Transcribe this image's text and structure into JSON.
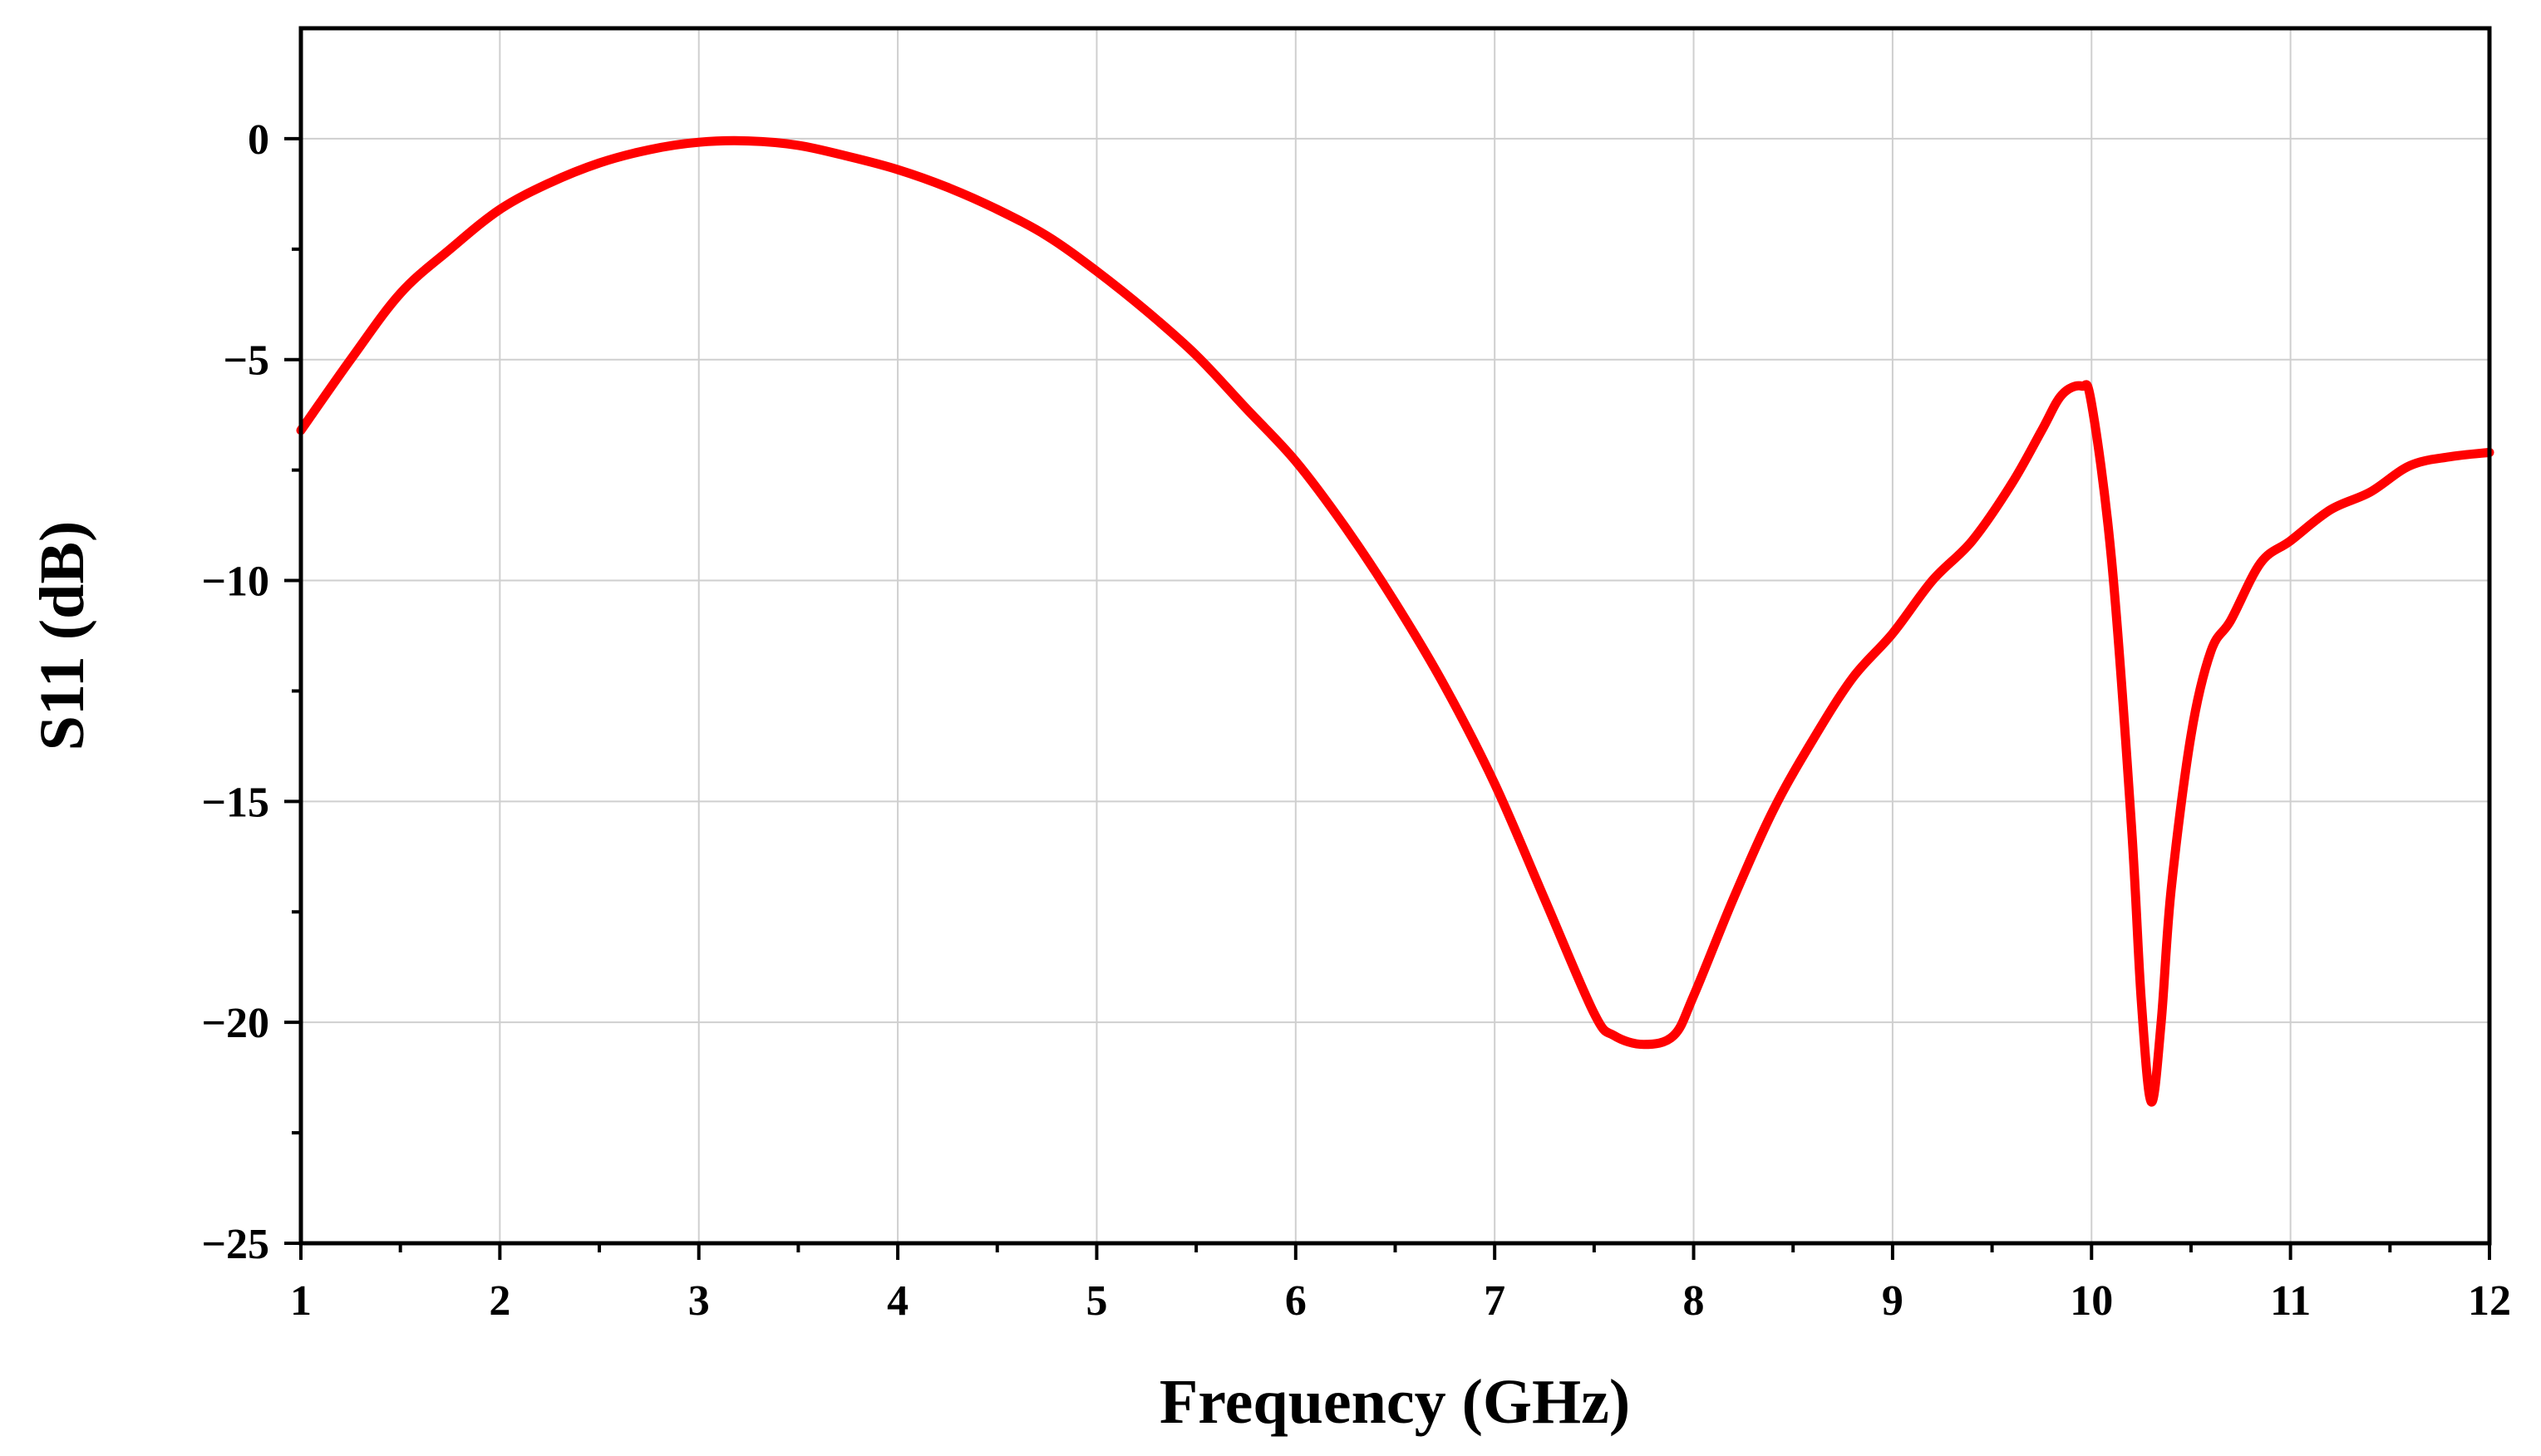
{
  "chart_data": {
    "type": "line",
    "title": "",
    "xlabel": "Frequency (GHz)",
    "ylabel": "S11 (dB)",
    "xlim": [
      1,
      12
    ],
    "ylim": [
      -25,
      2.5
    ],
    "grid": true,
    "legend": "none",
    "x_ticks": [
      1,
      2,
      3,
      4,
      5,
      6,
      7,
      8,
      9,
      10,
      11,
      12
    ],
    "x_tick_labels": [
      "1",
      "2",
      "3",
      "4",
      "5",
      "6",
      "7",
      "8",
      "9",
      "10",
      "11",
      "12"
    ],
    "y_ticks": [
      0,
      -5,
      -10,
      -15,
      -20,
      -25
    ],
    "y_tick_labels": [
      "0",
      "−5",
      "−10",
      "−15",
      "−20",
      "−25"
    ],
    "series": [
      {
        "color": "#ff0000",
        "x": [
          1.0,
          1.25,
          1.5,
          1.75,
          2.0,
          2.25,
          2.5,
          2.75,
          3.0,
          3.25,
          3.5,
          3.75,
          4.0,
          4.25,
          4.5,
          4.75,
          5.0,
          5.25,
          5.5,
          5.75,
          6.0,
          6.25,
          6.5,
          6.75,
          7.0,
          7.25,
          7.5,
          7.6,
          7.75,
          7.9,
          8.0,
          8.2,
          8.4,
          8.6,
          8.8,
          9.0,
          9.2,
          9.4,
          9.6,
          9.75,
          9.85,
          9.95,
          10.0,
          10.1,
          10.2,
          10.25,
          10.3,
          10.35,
          10.4,
          10.5,
          10.6,
          10.7,
          10.85,
          11.0,
          11.2,
          11.4,
          11.6,
          11.8,
          12.0
        ],
        "y": [
          -6.6,
          -5.0,
          -3.5,
          -2.5,
          -1.6,
          -1.0,
          -0.55,
          -0.25,
          -0.08,
          -0.05,
          -0.15,
          -0.4,
          -0.7,
          -1.1,
          -1.6,
          -2.2,
          -3.0,
          -3.9,
          -4.9,
          -6.1,
          -7.3,
          -8.8,
          -10.5,
          -12.4,
          -14.6,
          -17.2,
          -19.8,
          -20.3,
          -20.5,
          -20.3,
          -19.4,
          -17.2,
          -15.2,
          -13.6,
          -12.2,
          -11.2,
          -10.0,
          -9.1,
          -7.8,
          -6.6,
          -5.8,
          -5.6,
          -6.0,
          -9.5,
          -15.5,
          -19.5,
          -21.8,
          -20.0,
          -17.0,
          -13.5,
          -11.6,
          -10.9,
          -9.6,
          -9.1,
          -8.4,
          -8.0,
          -7.4,
          -7.2,
          -7.1
        ]
      }
    ]
  }
}
